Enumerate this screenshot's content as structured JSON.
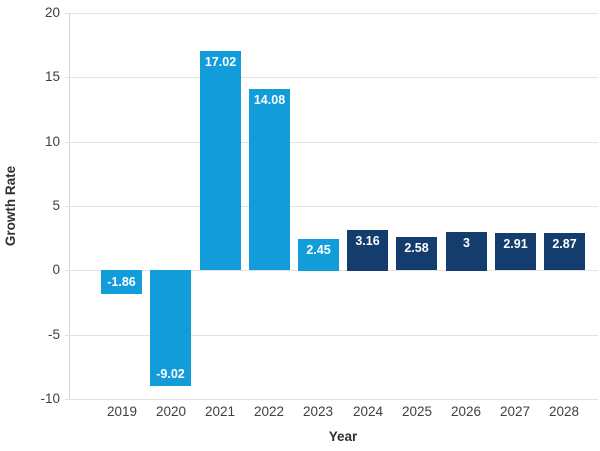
{
  "chart_data": {
    "type": "bar",
    "title": "",
    "xlabel": "Year",
    "ylabel": "Growth Rate",
    "categories": [
      "2019",
      "2020",
      "2021",
      "2022",
      "2023",
      "2024",
      "2025",
      "2026",
      "2027",
      "2028"
    ],
    "values": [
      -1.86,
      -9.02,
      17.02,
      14.08,
      2.45,
      3.16,
      2.58,
      3,
      2.91,
      2.87
    ],
    "bar_labels": [
      "-1.86",
      "-9.02",
      "17.02",
      "14.08",
      "2.45",
      "3.16",
      "2.58",
      "3",
      "2.91",
      "2.87"
    ],
    "bar_color_keys": [
      "light_blue",
      "light_blue",
      "light_blue",
      "light_blue",
      "light_blue",
      "dark_navy",
      "dark_navy",
      "dark_navy",
      "dark_navy",
      "dark_navy"
    ],
    "colors": {
      "light_blue": "#129cda",
      "dark_navy": "#143d6e",
      "gridline": "#e2e2e2",
      "axis_line": "#d9d9d9",
      "tick_text": "#404040",
      "bar_label_text": "#ffffff"
    },
    "ylim": [
      -10,
      20
    ],
    "yticks": [
      20,
      15,
      10,
      5,
      0,
      -5,
      -10
    ],
    "grid": true,
    "legend": "none"
  }
}
